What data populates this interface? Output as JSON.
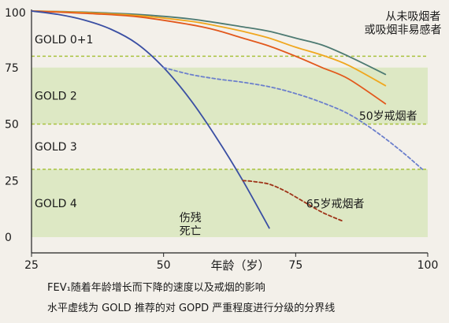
{
  "chart_data": {
    "type": "line",
    "xlabel": "年龄（岁）",
    "ylabel": "",
    "xlim": [
      25,
      100
    ],
    "ylim": [
      0,
      100
    ],
    "x_ticks": [
      "25",
      "50",
      "75",
      "100"
    ],
    "y_ticks": [
      "0",
      "25",
      "50",
      "75",
      "100"
    ],
    "grid": false,
    "bands": [
      {
        "label": "GOLD 0+1",
        "from": 75,
        "to": 100,
        "color": "#f3f0ea"
      },
      {
        "label": "GOLD 2",
        "from": 50,
        "to": 75,
        "color": "#dde8c4"
      },
      {
        "label": "GOLD 3",
        "from": 30,
        "to": 50,
        "color": "#f3f0ea"
      },
      {
        "label": "GOLD 4",
        "from": 0,
        "to": 30,
        "color": "#dde8c4"
      }
    ],
    "thresholds": [
      {
        "y": 80,
        "style": "dashed",
        "color": "#a9c23f"
      },
      {
        "y": 50,
        "style": "dashed",
        "color": "#a9c23f"
      },
      {
        "y": 30,
        "style": "dashed",
        "color": "#a9c23f"
      }
    ],
    "series": [
      {
        "name": "",
        "color": "#4d7a72",
        "style": "solid",
        "x": [
          25,
          35,
          45,
          55,
          65,
          70,
          75,
          80,
          85,
          92
        ],
        "y": [
          100,
          99.5,
          98.5,
          96.5,
          93,
          91,
          88,
          85,
          80,
          72
        ]
      },
      {
        "name": "",
        "color": "#f0a71e",
        "style": "solid",
        "x": [
          25,
          35,
          45,
          55,
          60,
          65,
          70,
          75,
          80,
          85,
          92
        ],
        "y": [
          100,
          99.3,
          98,
          95.5,
          93.5,
          91,
          88,
          84,
          80.5,
          76,
          67
        ]
      },
      {
        "name": "",
        "color": "#e2581c",
        "style": "solid",
        "x": [
          25,
          35,
          45,
          55,
          60,
          65,
          70,
          75,
          80,
          85,
          92
        ],
        "y": [
          100,
          99,
          97.5,
          94,
          91.5,
          88,
          84.5,
          80,
          75,
          70,
          59
        ]
      },
      {
        "name": "",
        "color": "#3a4fa3",
        "style": "solid",
        "x": [
          25,
          30,
          35,
          40,
          45,
          50,
          55,
          60,
          65,
          70
        ],
        "y": [
          100,
          98.5,
          96,
          92,
          85.5,
          75,
          61,
          44,
          25,
          4
        ]
      },
      {
        "name": "",
        "color": "#6b7fcc",
        "style": "dashed",
        "x": [
          50,
          55,
          60,
          65,
          70,
          75,
          80,
          85,
          90,
          95,
          99
        ],
        "y": [
          75,
          72,
          70,
          68.5,
          66.5,
          63.5,
          59.5,
          54.5,
          47,
          38,
          30
        ]
      },
      {
        "name": "",
        "color": "#9e3318",
        "style": "dashed",
        "x": [
          65,
          67,
          70,
          73,
          76,
          80,
          84
        ],
        "y": [
          25,
          24.6,
          23.4,
          20.4,
          16.4,
          11,
          7
        ]
      }
    ],
    "annotations": [
      {
        "text": "从未吸烟者",
        "x": 92,
        "y": 96
      },
      {
        "text": "或吸烟非易感者",
        "x": 88,
        "y": 90
      },
      {
        "text": "50岁戒烟者",
        "x": 87,
        "y": 52
      },
      {
        "text": "65岁戒烟者",
        "x": 77,
        "y": 13
      },
      {
        "text": "伤残",
        "x": 53,
        "y": 7
      },
      {
        "text": "死亡",
        "x": 53,
        "y": 1
      }
    ]
  },
  "captions": [
    "FEV₁随着年龄增长而下降的速度以及戒烟的影响",
    "水平虚线为 GOLD 推荐的对 GOPD 严重程度进行分级的分界线"
  ]
}
